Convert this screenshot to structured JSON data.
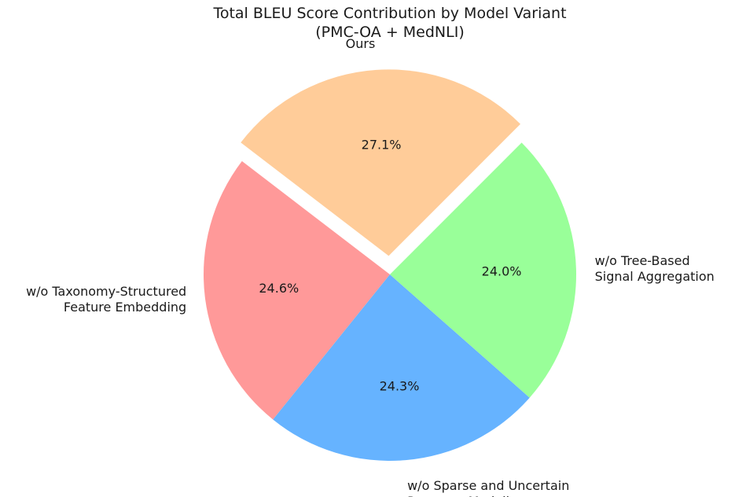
{
  "chart_data": {
    "type": "pie",
    "title_lines": [
      "Total BLEU Score Contribution by Model Variant",
      "(PMC-OA + MedNLI)"
    ],
    "start_angle_deg": 45,
    "direction": "counterclockwise",
    "slices": [
      {
        "label_lines": [
          "Ours"
        ],
        "value": 27.1,
        "pct_text": "27.1%",
        "color": "#ffcc99",
        "explode": 0.1
      },
      {
        "label_lines": [
          "w/o Taxonomy-Structured",
          "Feature Embedding"
        ],
        "value": 24.6,
        "pct_text": "24.6%",
        "color": "#ff9999",
        "explode": 0
      },
      {
        "label_lines": [
          "w/o Sparse and Uncertain",
          "Presence Modeling"
        ],
        "value": 24.3,
        "pct_text": "24.3%",
        "color": "#66b3ff",
        "explode": 0
      },
      {
        "label_lines": [
          "w/o Tree-Based",
          "Signal Aggregation"
        ],
        "value": 24.0,
        "pct_text": "24.0%",
        "color": "#99ff99",
        "explode": 0
      }
    ]
  }
}
